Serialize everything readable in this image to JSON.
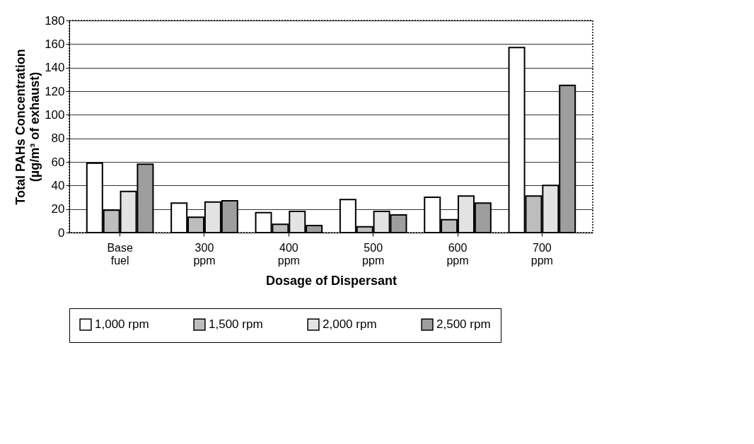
{
  "chart_data": {
    "type": "bar",
    "xlabel": "Dosage of Dispersant",
    "ylabel": "Total PAHs Concentration\n(µg/m³ of exhaust)",
    "categories": [
      "Base fuel",
      "300 ppm",
      "400 ppm",
      "500 ppm",
      "600 ppm",
      "700 ppm"
    ],
    "series": [
      {
        "name": "1,000 rpm",
        "color": "#ffffff",
        "values": [
          59,
          25,
          17,
          28,
          30,
          157
        ]
      },
      {
        "name": "1,500 rpm",
        "color": "#bdbdbd",
        "values": [
          19,
          13,
          7,
          5,
          11,
          31
        ]
      },
      {
        "name": "2,000 rpm",
        "color": "#e3e3e3",
        "values": [
          35,
          26,
          18,
          18,
          31,
          40
        ]
      },
      {
        "name": "2,500 rpm",
        "color": "#9e9e9e",
        "values": [
          58,
          27,
          6,
          15,
          25,
          125
        ]
      }
    ],
    "ylim": [
      0,
      180
    ],
    "yticks": [
      0,
      20,
      40,
      60,
      80,
      100,
      120,
      140,
      160,
      180
    ],
    "grid": "y",
    "legend": "bottom"
  }
}
